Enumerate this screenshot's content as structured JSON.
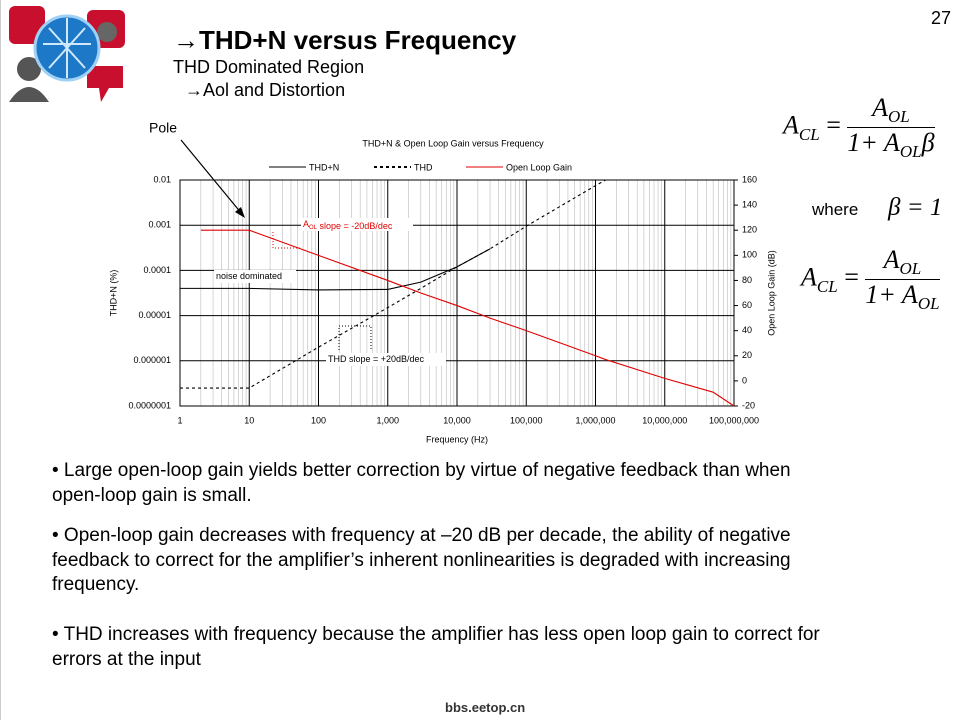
{
  "page_number": "27",
  "header": {
    "title": "→THD+N versus Frequency",
    "subtitle": "THD Dominated Region",
    "subsubtitle": "→Aol and Distortion"
  },
  "chart_data": {
    "type": "line",
    "title": "THD+N & Open Loop Gain versus Frequency",
    "x_label": "Frequency (Hz)",
    "y_label": "THD+N (%)",
    "y2_label": "Open Loop Gain (dB)",
    "x": [
      1,
      2,
      10,
      100,
      1000,
      3000,
      10000,
      30000,
      100000,
      1000000,
      1400000,
      10000000,
      50000000,
      100000000
    ],
    "series": [
      {
        "name": "THD+N",
        "color": "#000000",
        "dash": "solid",
        "axis": "y",
        "values": [
          4e-05,
          4e-05,
          4e-05,
          3.7e-05,
          3.8e-05,
          5.5e-05,
          0.00012,
          0.0003,
          null,
          null,
          null,
          null,
          null,
          null
        ]
      },
      {
        "name": "THD",
        "color": "#000000",
        "dash": "dotted",
        "axis": "y",
        "values": [
          2.5e-07,
          2.5e-07,
          2.5e-07,
          2e-06,
          1.5e-05,
          4e-05,
          0.00012,
          0.0003,
          0.00095,
          0.0075,
          0.01,
          null,
          null,
          null
        ]
      },
      {
        "name": "Open Loop Gain",
        "color": "#e00000",
        "dash": "solid",
        "axis": "y2",
        "values": [
          null,
          120,
          120,
          100,
          80,
          70,
          60,
          50,
          40,
          20,
          17,
          2,
          -9,
          -20
        ]
      }
    ],
    "xscale": "log",
    "yscale": "log",
    "xlim": [
      1,
      100000000
    ],
    "xticks": [
      1,
      10,
      100,
      {
        "value": 1000,
        "label": "1,000"
      },
      {
        "value": 10000,
        "label": "10,000"
      },
      {
        "value": 100000,
        "label": "100,000"
      },
      {
        "value": 1000000,
        "label": "1,000,000"
      },
      {
        "value": 10000000,
        "label": "10,000,000"
      },
      {
        "value": 100000000,
        "label": "100,000,000"
      }
    ],
    "ylim": [
      1e-07,
      0.01
    ],
    "yticks": [
      {
        "value": 1e-07,
        "label": "0.0000001"
      },
      {
        "value": 1e-06,
        "label": "0.000001"
      },
      {
        "value": 1e-05,
        "label": "0.00001"
      },
      {
        "value": 0.0001,
        "label": "0.0001"
      },
      {
        "value": 0.001,
        "label": "0.001"
      },
      {
        "value": 0.01,
        "label": "0.01"
      }
    ],
    "y2lim": [
      -20,
      160
    ],
    "y2ticks": [
      -20,
      0,
      20,
      40,
      60,
      80,
      100,
      120,
      140,
      160
    ],
    "grid": true,
    "annotations": {
      "pole": "Pole",
      "aol_base": "A",
      "aol_sub": "OL",
      "aol_text": " slope = -20dB/dec",
      "noise": "noise dominated",
      "thd_slope": "THD slope = +20dB/dec"
    }
  },
  "equations": {
    "eq1": {
      "lhs": "A",
      "lhs_sub": "CL",
      "eq": "=",
      "num": "A",
      "num_sub": "OL",
      "den": "1+ A",
      "den_sub": "OL",
      "den_tail": "β"
    },
    "where": "where",
    "beta": "β = 1",
    "eq2": {
      "lhs": "A",
      "lhs_sub": "CL",
      "eq": "=",
      "num": "A",
      "num_sub": "OL",
      "den": "1+ A",
      "den_sub": "OL"
    }
  },
  "bullets": [
    "• Large open-loop gain yields better correction by virtue of negative feedback than when open-loop gain is small.",
    "• Open-loop gain decreases with frequency at –20 dB per decade, the ability of negative feedback to correct for the amplifier’s inherent nonlinearities is degraded with increasing frequency.",
    "• THD increases with frequency because the amplifier has less open loop gain to correct for errors at the input"
  ],
  "footer": "bbs.eetop.cn"
}
